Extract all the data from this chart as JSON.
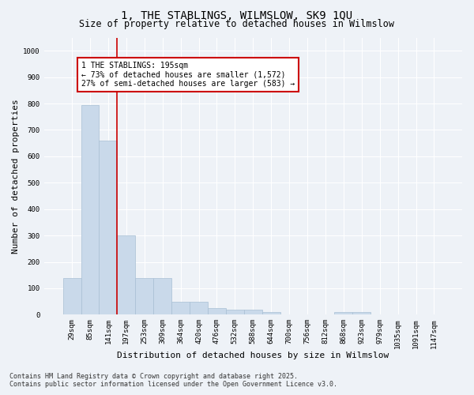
{
  "title_line1": "1, THE STABLINGS, WILMSLOW, SK9 1QU",
  "title_line2": "Size of property relative to detached houses in Wilmslow",
  "xlabel": "Distribution of detached houses by size in Wilmslow",
  "ylabel": "Number of detached properties",
  "bar_color": "#c9d9ea",
  "bar_edge_color": "#a8bfd4",
  "vline_color": "#cc0000",
  "vline_x_idx": 3,
  "annotation_text": "1 THE STABLINGS: 195sqm\n← 73% of detached houses are smaller (1,572)\n27% of semi-detached houses are larger (583) →",
  "annotation_box_color": "#ffffff",
  "annotation_box_edge": "#cc0000",
  "footer_line1": "Contains HM Land Registry data © Crown copyright and database right 2025.",
  "footer_line2": "Contains public sector information licensed under the Open Government Licence v3.0.",
  "categories": [
    "29sqm",
    "85sqm",
    "141sqm",
    "197sqm",
    "253sqm",
    "309sqm",
    "364sqm",
    "420sqm",
    "476sqm",
    "532sqm",
    "588sqm",
    "644sqm",
    "700sqm",
    "756sqm",
    "812sqm",
    "868sqm",
    "923sqm",
    "979sqm",
    "1035sqm",
    "1091sqm",
    "1147sqm"
  ],
  "values": [
    140,
    795,
    660,
    300,
    140,
    140,
    50,
    50,
    25,
    20,
    20,
    10,
    0,
    0,
    0,
    10,
    10,
    0,
    0,
    0,
    0
  ],
  "ylim": [
    0,
    1050
  ],
  "yticks": [
    0,
    100,
    200,
    300,
    400,
    500,
    600,
    700,
    800,
    900,
    1000
  ],
  "background_color": "#eef2f7",
  "grid_color": "#ffffff",
  "title_fontsize": 10,
  "subtitle_fontsize": 8.5,
  "tick_fontsize": 6.5,
  "annot_fontsize": 7,
  "label_fontsize": 8,
  "footer_fontsize": 6
}
